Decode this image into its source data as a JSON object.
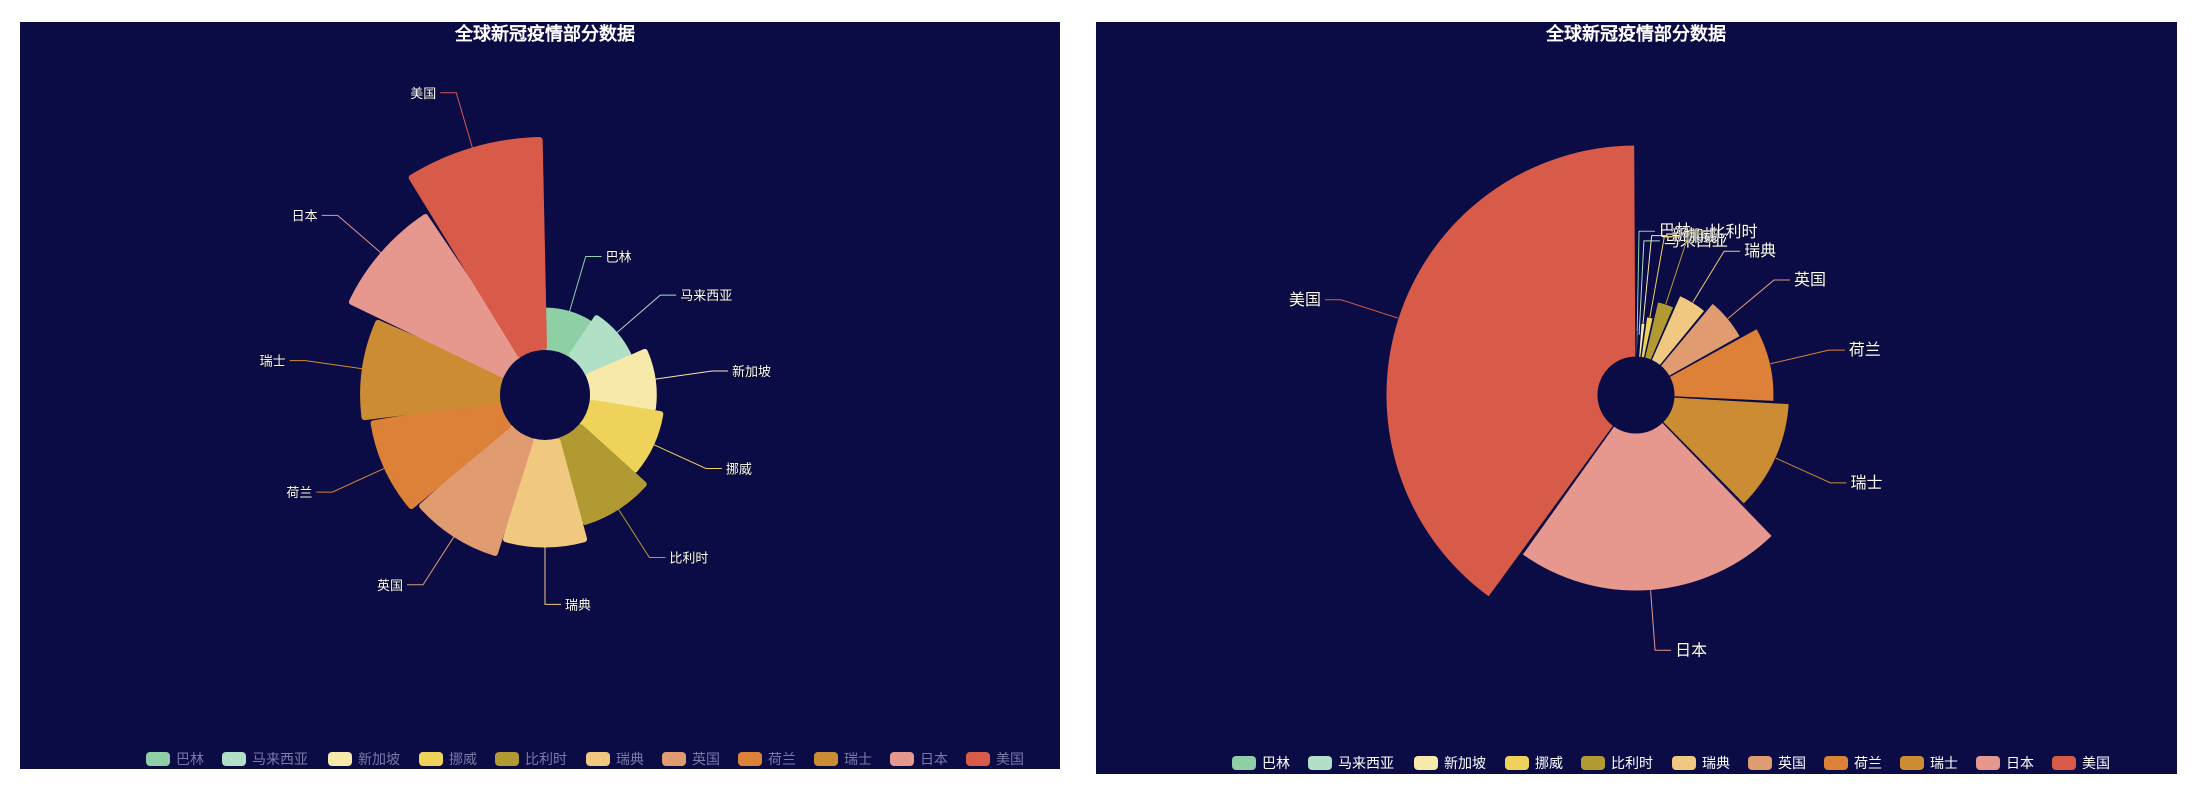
{
  "colors": {
    "page_bg": "#ffffff",
    "panel_bg": "#0b0b45",
    "text": "#ffffff",
    "legend_text_dim": "#7a7aa6",
    "legend_text": "#ffffff",
    "center_hole": "#0b0b45"
  },
  "chart_data": [
    {
      "type": "pie",
      "variant": "rose-radius",
      "title": "全球新冠疫情部分数据",
      "legend_position": "bottom",
      "legend_style": "dim",
      "categories": [
        "巴林",
        "马来西亚",
        "新加坡",
        "挪威",
        "比利时",
        "瑞典",
        "英国",
        "荷兰",
        "瑞士",
        "日本",
        "美国"
      ],
      "values": [
        6,
        8,
        12,
        14,
        18,
        22,
        26,
        28,
        30,
        38,
        48
      ],
      "slice_colors": [
        "#8fcfa6",
        "#b1e0c7",
        "#f7e9aa",
        "#efd25a",
        "#b29a33",
        "#f0c880",
        "#e09b71",
        "#dc8137",
        "#cc8c33",
        "#e6978e",
        "#d85a48"
      ]
    },
    {
      "type": "pie",
      "variant": "rose-area",
      "title": "全球新冠疫情部分数据",
      "legend_position": "bottom",
      "legend_style": "bright",
      "categories": [
        "巴林",
        "马来西亚",
        "新加坡",
        "挪威",
        "比利时",
        "瑞典",
        "英国",
        "荷兰",
        "瑞士",
        "日本",
        "美国"
      ],
      "values": [
        4,
        3,
        7,
        10,
        20,
        30,
        40,
        60,
        80,
        150,
        270
      ],
      "slice_colors": [
        "#8fcfa6",
        "#b1e0c7",
        "#f7e9aa",
        "#efd25a",
        "#b29a33",
        "#f0c880",
        "#e09b71",
        "#dc8137",
        "#cc8c33",
        "#e6978e",
        "#d85a48"
      ]
    }
  ]
}
